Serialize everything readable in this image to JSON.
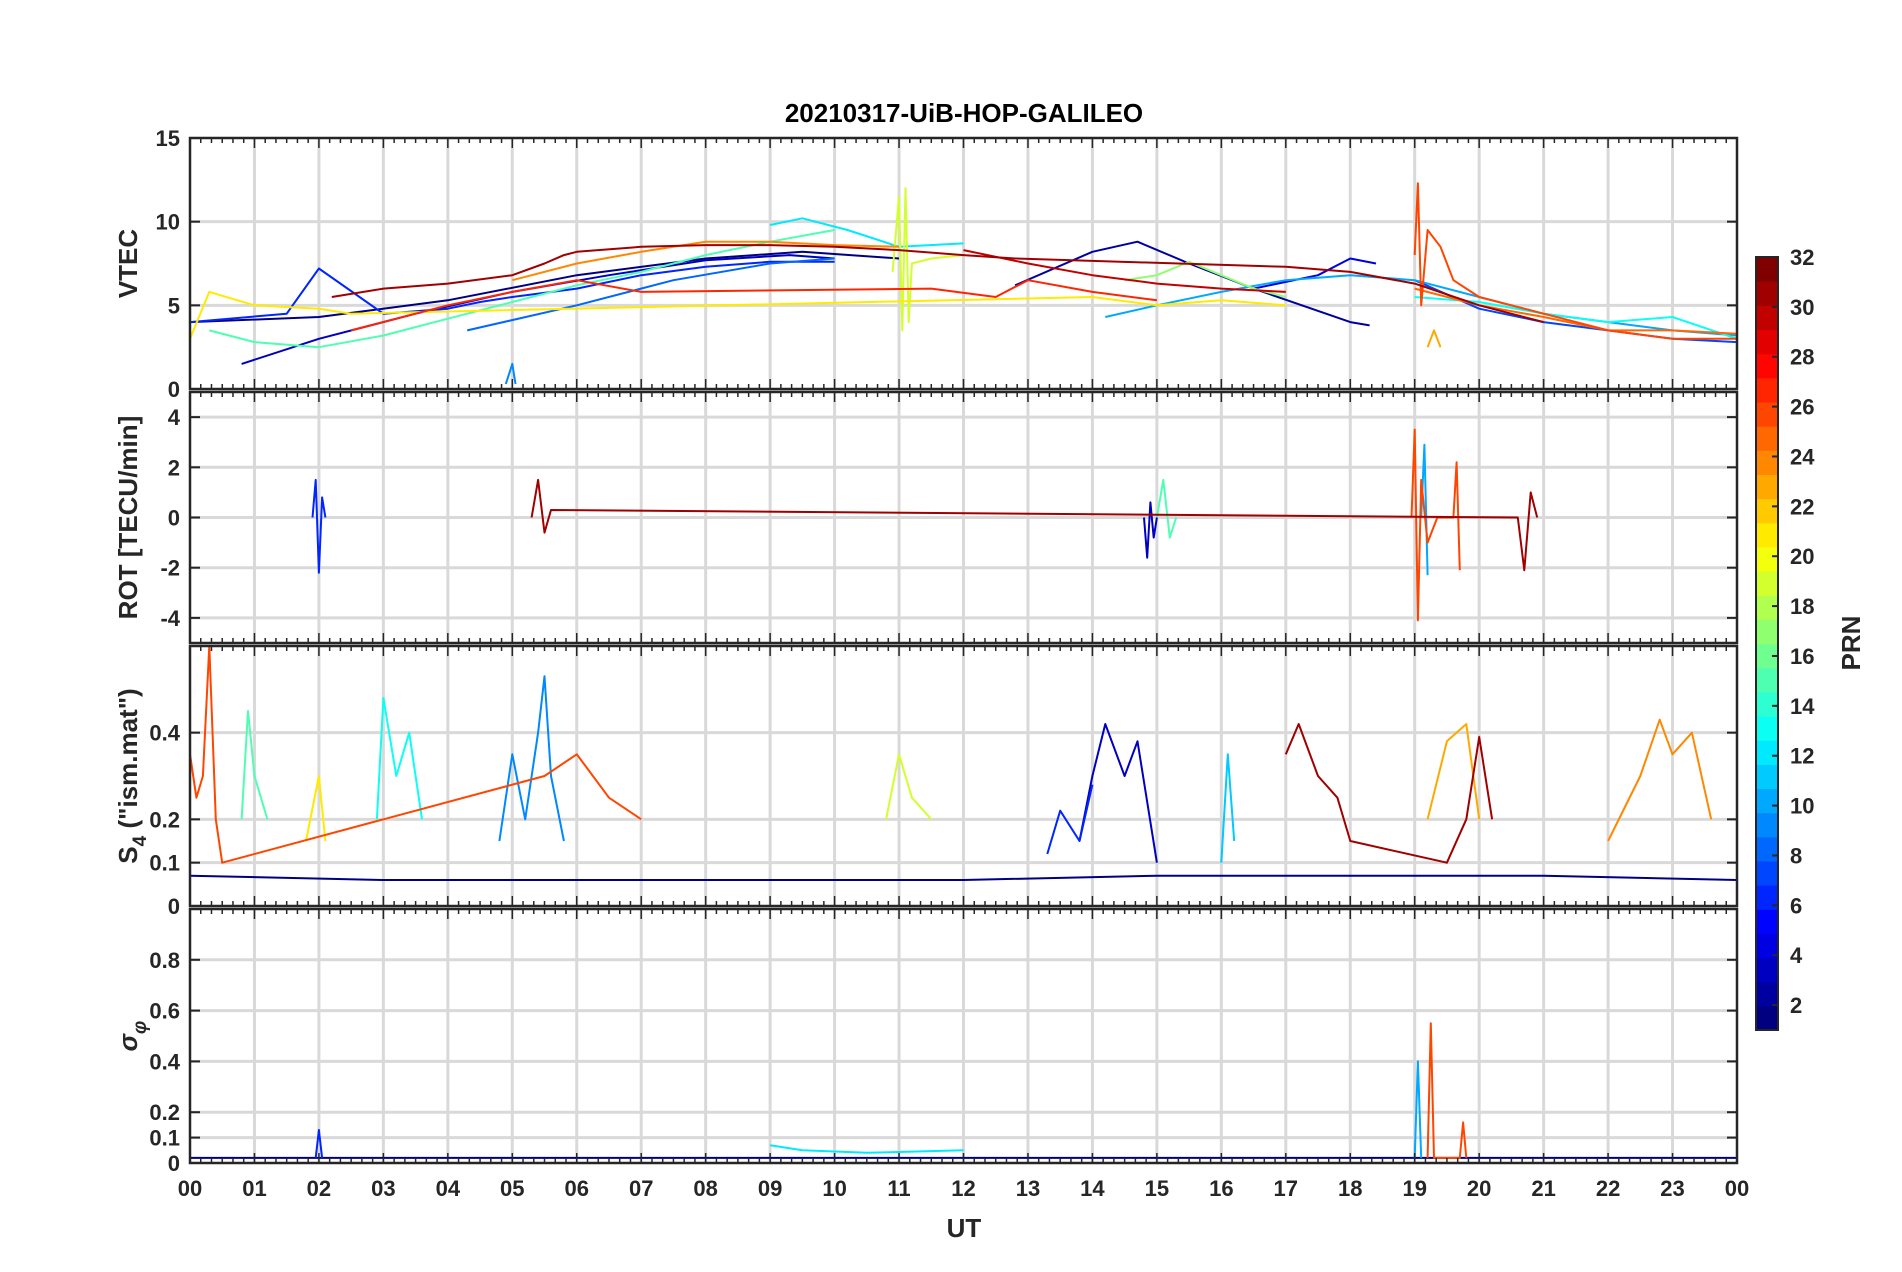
{
  "chart_data": {
    "type": "line",
    "title": "20210317-UiB-HOP-GALILEO",
    "xlabel": "UT",
    "x_ticks": [
      "00",
      "01",
      "02",
      "03",
      "04",
      "05",
      "06",
      "07",
      "08",
      "09",
      "10",
      "11",
      "12",
      "13",
      "14",
      "15",
      "16",
      "17",
      "18",
      "19",
      "20",
      "21",
      "22",
      "23",
      "00"
    ],
    "xlim_hours": [
      0,
      24
    ],
    "grid": true,
    "colormap": "jet",
    "colorbar": {
      "label": "PRN",
      "ticks": [
        "2",
        "4",
        "6",
        "8",
        "10",
        "12",
        "14",
        "16",
        "18",
        "20",
        "22",
        "24",
        "26",
        "28",
        "30",
        "32"
      ],
      "range": [
        1,
        32
      ],
      "placement": "right"
    },
    "panels": [
      {
        "id": "vtec",
        "ylabel": "VTEC",
        "ylim": [
          0,
          15
        ],
        "y_ticks": [
          0,
          5,
          10,
          15
        ],
        "y_tick_labels": [
          "0",
          "5",
          "10",
          "15"
        ],
        "series": [
          {
            "prn": 1,
            "x": [
              0.0,
              2.0,
              4.0,
              6.0,
              8.0,
              9.5,
              11.0
            ],
            "y": [
              4.0,
              4.3,
              5.3,
              6.8,
              7.8,
              8.2,
              7.8
            ]
          },
          {
            "prn": 2,
            "x": [
              12.8,
              14.0,
              14.7,
              15.5,
              16.5,
              18.0,
              18.3
            ],
            "y": [
              6.2,
              8.2,
              8.8,
              7.5,
              6.0,
              4.0,
              3.8
            ]
          },
          {
            "prn": 3,
            "x": [
              0.8,
              2.0,
              3.5,
              5.0,
              6.5,
              8.0,
              9.3,
              10.0
            ],
            "y": [
              1.5,
              3.0,
              4.5,
              5.8,
              6.8,
              7.7,
              8.0,
              7.8
            ]
          },
          {
            "prn": 4,
            "x": [
              16.5,
              17.5,
              18.0,
              18.4
            ],
            "y": [
              6.0,
              6.8,
              7.8,
              7.5
            ]
          },
          {
            "prn": 6,
            "x": [
              0.0,
              1.5,
              2.0,
              3.0,
              4.0,
              4.5,
              5.0,
              6.0,
              7.0,
              8.0,
              9.0,
              10.0
            ],
            "y": [
              4.0,
              4.5,
              7.2,
              4.5,
              4.8,
              5.2,
              5.5,
              6.0,
              6.8,
              7.3,
              7.6,
              7.6
            ]
          },
          {
            "prn": 7,
            "x": [
              19.0,
              20.0,
              21.0,
              22.0,
              23.0,
              24.0
            ],
            "y": [
              6.5,
              4.8,
              4.0,
              3.5,
              3.0,
              2.8
            ]
          },
          {
            "prn": 8,
            "x": [
              4.3,
              6.0,
              7.5,
              9.0,
              10.0
            ],
            "y": [
              3.5,
              5.0,
              6.5,
              7.5,
              7.8
            ]
          },
          {
            "prn": 9,
            "x": [
              4.9,
              5.0,
              5.05
            ],
            "y": [
              0.3,
              1.5,
              0.3
            ]
          },
          {
            "prn": 10,
            "x": [
              14.2,
              15.0,
              16.0,
              17.0,
              18.0,
              19.0,
              20.0,
              21.0,
              22.0,
              23.0,
              24.0
            ],
            "y": [
              4.3,
              5.0,
              5.8,
              6.5,
              6.8,
              6.5,
              5.5,
              4.5,
              4.0,
              3.5,
              3.2
            ]
          },
          {
            "prn": 12,
            "x": [
              9.0,
              9.5,
              10.2,
              11.0,
              12.0
            ],
            "y": [
              9.8,
              10.2,
              9.5,
              8.5,
              8.7
            ]
          },
          {
            "prn": 13,
            "x": [
              19.0,
              20.0,
              21.0,
              22.0,
              23.0,
              24.0
            ],
            "y": [
              5.5,
              5.2,
              4.5,
              4.0,
              4.3,
              3.0
            ]
          },
          {
            "prn": 15,
            "x": [
              0.3,
              1.0,
              2.0,
              3.0,
              4.0,
              5.0,
              6.0,
              7.0,
              8.0,
              9.0,
              10.0
            ],
            "y": [
              3.5,
              2.8,
              2.5,
              3.2,
              4.2,
              5.2,
              6.2,
              7.0,
              8.0,
              8.8,
              9.5
            ]
          },
          {
            "prn": 17,
            "x": [
              14.5,
              15.0,
              15.5,
              16.0,
              16.5,
              17.0
            ],
            "y": [
              6.5,
              6.8,
              7.6,
              6.8,
              6.0,
              5.5
            ]
          },
          {
            "prn": 19,
            "x": [
              10.9,
              11.0,
              11.05,
              11.1,
              11.15,
              11.2,
              11.5,
              12.0
            ],
            "y": [
              7.0,
              11.5,
              3.5,
              12.0,
              4.0,
              7.5,
              7.8,
              8.0
            ]
          },
          {
            "prn": 21,
            "x": [
              0.0,
              0.3,
              1.0,
              2.0,
              2.5,
              14.0,
              15.0,
              16.0,
              17.0
            ],
            "y": [
              3.0,
              5.8,
              5.0,
              4.8,
              4.5,
              5.5,
              5.0,
              5.3,
              5.0
            ]
          },
          {
            "prn": 23,
            "x": [
              19.2,
              19.3,
              19.4
            ],
            "y": [
              2.5,
              3.5,
              2.5
            ]
          },
          {
            "prn": 24,
            "x": [
              5.0,
              6.0,
              7.0,
              8.0,
              9.0,
              10.0,
              11.0
            ],
            "y": [
              6.5,
              7.5,
              8.2,
              8.8,
              8.8,
              8.6,
              8.5
            ]
          },
          {
            "prn": 25,
            "x": [
              19.0,
              20.0,
              21.0,
              22.0,
              23.0,
              24.0
            ],
            "y": [
              6.0,
              5.0,
              4.3,
              3.5,
              3.5,
              3.3
            ]
          },
          {
            "prn": 26,
            "x": [
              19.0,
              19.05,
              19.1,
              19.2,
              19.4,
              19.6,
              20.0,
              21.0,
              22.0,
              23.0,
              24.0
            ],
            "y": [
              8.0,
              12.3,
              5.0,
              9.5,
              8.5,
              6.5,
              5.5,
              4.5,
              3.5,
              3.0,
              3.0
            ]
          },
          {
            "prn": 27,
            "x": [
              2.5,
              4.0,
              5.0,
              6.0,
              7.0,
              11.5,
              12.5,
              13.0,
              14.0,
              15.0
            ],
            "y": [
              3.5,
              5.0,
              5.8,
              6.5,
              5.8,
              6.0,
              5.5,
              6.5,
              5.8,
              5.3
            ]
          },
          {
            "prn": 30,
            "x": [
              12.0,
              13.0,
              14.0,
              15.0,
              16.0,
              17.0
            ],
            "y": [
              8.3,
              7.5,
              6.8,
              6.3,
              6.0,
              5.8
            ]
          },
          {
            "prn": 31,
            "x": [
              2.2,
              3.0,
              4.0,
              5.0,
              5.5,
              5.8,
              6.0,
              7.0,
              8.0,
              9.0,
              10.0,
              11.0,
              12.0,
              12.8,
              17.0,
              18.0,
              19.0,
              20.0,
              21.0
            ],
            "y": [
              5.5,
              6.0,
              6.3,
              6.8,
              7.5,
              8.0,
              8.2,
              8.5,
              8.6,
              8.6,
              8.5,
              8.3,
              8.0,
              7.8,
              7.3,
              7.0,
              6.3,
              5.0,
              4.0
            ]
          }
        ]
      },
      {
        "id": "rot",
        "ylabel": "ROT [TECU/min]",
        "ylim": [
          -5,
          5
        ],
        "y_ticks": [
          -4,
          -2,
          0,
          2,
          4
        ],
        "y_tick_labels": [
          "-4",
          "-2",
          "0",
          "2",
          "4"
        ],
        "series": [
          {
            "prn": 3,
            "x": [
              14.8,
              14.85,
              14.9,
              14.95,
              15.0
            ],
            "y": [
              0.0,
              -1.6,
              0.6,
              -0.8,
              0.0
            ]
          },
          {
            "prn": 6,
            "x": [
              1.9,
              1.95,
              2.0,
              2.05,
              2.1
            ],
            "y": [
              0.0,
              1.5,
              -2.2,
              0.8,
              0.0
            ]
          },
          {
            "prn": 10,
            "x": [
              19.1,
              19.15,
              19.2
            ],
            "y": [
              0.0,
              2.9,
              -2.3
            ]
          },
          {
            "prn": 15,
            "x": [
              15.0,
              15.1,
              15.2,
              15.3
            ],
            "y": [
              0.0,
              1.5,
              -0.8,
              0.0
            ]
          },
          {
            "prn": 26,
            "x": [
              18.95,
              19.0,
              19.05,
              19.1,
              19.2,
              19.35,
              19.6,
              19.65,
              19.7
            ],
            "y": [
              0.0,
              3.5,
              -4.1,
              1.5,
              -1.0,
              0.0,
              0.0,
              2.2,
              -2.1
            ]
          },
          {
            "prn": 31,
            "x": [
              5.3,
              5.4,
              5.5,
              5.6,
              20.6,
              20.7,
              20.8,
              20.9
            ],
            "y": [
              0.0,
              1.5,
              -0.6,
              0.3,
              0.0,
              -2.1,
              1.0,
              0.0
            ]
          }
        ]
      },
      {
        "id": "s4",
        "ylabel": "S4 (\"ism.mat\")",
        "ylabel_main": "S",
        "ylabel_sub": "4",
        "ylabel_rest": " (\"ism.mat\")",
        "ylim": [
          0,
          0.6
        ],
        "y_ticks": [
          0,
          0.1,
          0.2,
          0.4
        ],
        "y_tick_labels": [
          "0",
          "0.1",
          "0.2",
          "0.4"
        ],
        "series": [
          {
            "prn": 1,
            "x": [
              0.0,
              3.0,
              6.0,
              9.0,
              12.0,
              15.0,
              18.0,
              21.0,
              24.0
            ],
            "y": [
              0.07,
              0.06,
              0.06,
              0.06,
              0.06,
              0.07,
              0.07,
              0.07,
              0.06
            ]
          },
          {
            "prn": 3,
            "x": [
              13.8,
              14.0,
              14.2,
              14.5,
              14.7,
              15.0
            ],
            "y": [
              0.15,
              0.3,
              0.42,
              0.3,
              0.38,
              0.1
            ]
          },
          {
            "prn": 6,
            "x": [
              13.3,
              13.5,
              13.8,
              14.0
            ],
            "y": [
              0.12,
              0.22,
              0.15,
              0.28
            ]
          },
          {
            "prn": 9,
            "x": [
              4.8,
              5.0,
              5.2,
              5.4,
              5.5,
              5.6,
              5.8
            ],
            "y": [
              0.15,
              0.35,
              0.2,
              0.4,
              0.53,
              0.3,
              0.15
            ]
          },
          {
            "prn": 11,
            "x": [
              16.0,
              16.1,
              16.2
            ],
            "y": [
              0.1,
              0.35,
              0.15
            ]
          },
          {
            "prn": 13,
            "x": [
              2.9,
              3.0,
              3.2,
              3.4,
              3.6
            ],
            "y": [
              0.2,
              0.48,
              0.3,
              0.4,
              0.2
            ]
          },
          {
            "prn": 15,
            "x": [
              0.8,
              0.9,
              1.0,
              1.2
            ],
            "y": [
              0.2,
              0.45,
              0.3,
              0.2
            ]
          },
          {
            "prn": 19,
            "x": [
              10.8,
              11.0,
              11.2,
              11.5
            ],
            "y": [
              0.2,
              0.35,
              0.25,
              0.2
            ]
          },
          {
            "prn": 21,
            "x": [
              1.8,
              2.0,
              2.1
            ],
            "y": [
              0.15,
              0.3,
              0.15
            ]
          },
          {
            "prn": 23,
            "x": [
              19.2,
              19.5,
              19.8,
              20.0
            ],
            "y": [
              0.2,
              0.38,
              0.42,
              0.2
            ]
          },
          {
            "prn": 24,
            "x": [
              22.0,
              22.5,
              22.8,
              23.0,
              23.3,
              23.6
            ],
            "y": [
              0.15,
              0.3,
              0.43,
              0.35,
              0.4,
              0.2
            ]
          },
          {
            "prn": 26,
            "x": [
              0.0,
              0.1,
              0.2,
              0.3,
              0.4,
              0.5,
              5.5,
              6.0,
              6.5,
              7.0
            ],
            "y": [
              0.35,
              0.25,
              0.3,
              0.6,
              0.2,
              0.1,
              0.3,
              0.35,
              0.25,
              0.2
            ]
          },
          {
            "prn": 31,
            "x": [
              17.0,
              17.2,
              17.5,
              17.8,
              18.0,
              19.5,
              19.8,
              20.0,
              20.2
            ],
            "y": [
              0.35,
              0.42,
              0.3,
              0.25,
              0.15,
              0.1,
              0.2,
              0.39,
              0.2
            ]
          }
        ]
      },
      {
        "id": "sigma",
        "ylabel": "σ φ",
        "ylabel_main": "σ",
        "ylabel_sub": "φ",
        "ylim": [
          0,
          1
        ],
        "y_ticks": [
          0,
          0.1,
          0.2,
          0.4,
          0.6,
          0.8
        ],
        "y_tick_labels": [
          "0",
          "0.1",
          "0.2",
          "0.4",
          "0.6",
          "0.8"
        ],
        "series": [
          {
            "prn": 1,
            "x": [
              0.0,
              6.0,
              12.0,
              18.0,
              24.0
            ],
            "y": [
              0.02,
              0.02,
              0.02,
              0.02,
              0.02
            ]
          },
          {
            "prn": 6,
            "x": [
              1.95,
              2.0,
              2.05
            ],
            "y": [
              0.02,
              0.13,
              0.02
            ]
          },
          {
            "prn": 10,
            "x": [
              19.0,
              19.05,
              19.1
            ],
            "y": [
              0.02,
              0.4,
              0.02
            ]
          },
          {
            "prn": 12,
            "x": [
              9.0,
              9.5,
              10.5,
              12.0
            ],
            "y": [
              0.07,
              0.05,
              0.04,
              0.05
            ]
          },
          {
            "prn": 26,
            "x": [
              19.2,
              19.25,
              19.3,
              19.7,
              19.75,
              19.8
            ],
            "y": [
              0.02,
              0.55,
              0.02,
              0.02,
              0.16,
              0.02
            ]
          }
        ]
      }
    ]
  }
}
